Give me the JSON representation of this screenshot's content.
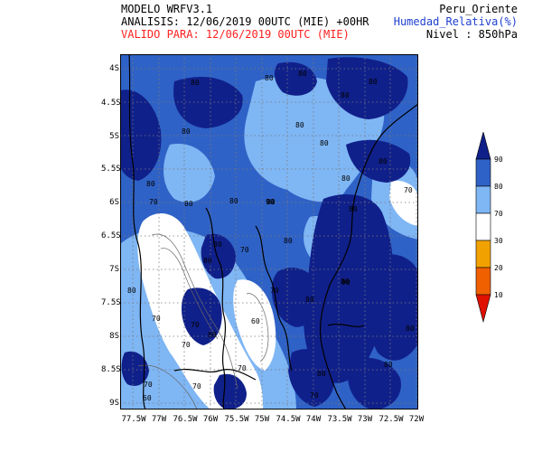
{
  "header": {
    "model": "MODELO WRFV3.1",
    "analysis": "ANALISIS: 12/06/2019 00UTC (MIE) +00HR",
    "valid": "VALIDO PARA: 12/06/2019 00UTC (MIE)",
    "region": "Peru_Oriente",
    "variable": "Humedad_Relativa(%)",
    "level": "Nivel : 850hPa"
  },
  "colors": {
    "valid_text": "#ff2020",
    "variable_text": "#2040d0",
    "rh_90_plus": "#10208a",
    "rh_80_90": "#2f62c6",
    "rh_70_80": "#7fb6f4",
    "rh_30_70": "#ffffff",
    "rh_20_30": "#f2a200",
    "rh_10_20": "#f06000",
    "rh_below_10": "#e01000",
    "border_line": "#000000",
    "grid_line": "#7a7a7a"
  },
  "colorbar": {
    "labels": [
      "90",
      "80",
      "70",
      "30",
      "20",
      "10"
    ]
  },
  "axes": {
    "y_ticks": [
      "4S",
      "4.5S",
      "5S",
      "5.5S",
      "6S",
      "6.5S",
      "7S",
      "7.5S",
      "8S",
      "8.5S",
      "9S"
    ],
    "x_ticks": [
      "77.5W",
      "77W",
      "76.5W",
      "76W",
      "75.5W",
      "75W",
      "74.5W",
      "74W",
      "73.5W",
      "73W",
      "72.5W",
      "72W"
    ]
  },
  "contour_labels": [
    "80",
    "80",
    "80",
    "80",
    "80",
    "80",
    "80",
    "80",
    "80",
    "80",
    "80",
    "80",
    "80",
    "80",
    "80",
    "80",
    "80",
    "80",
    "80",
    "80",
    "80",
    "80",
    "80",
    "80",
    "80",
    "70",
    "70",
    "70",
    "70",
    "70",
    "70",
    "70",
    "70",
    "70",
    "70",
    "70",
    "60",
    "60",
    "90",
    "90"
  ]
}
